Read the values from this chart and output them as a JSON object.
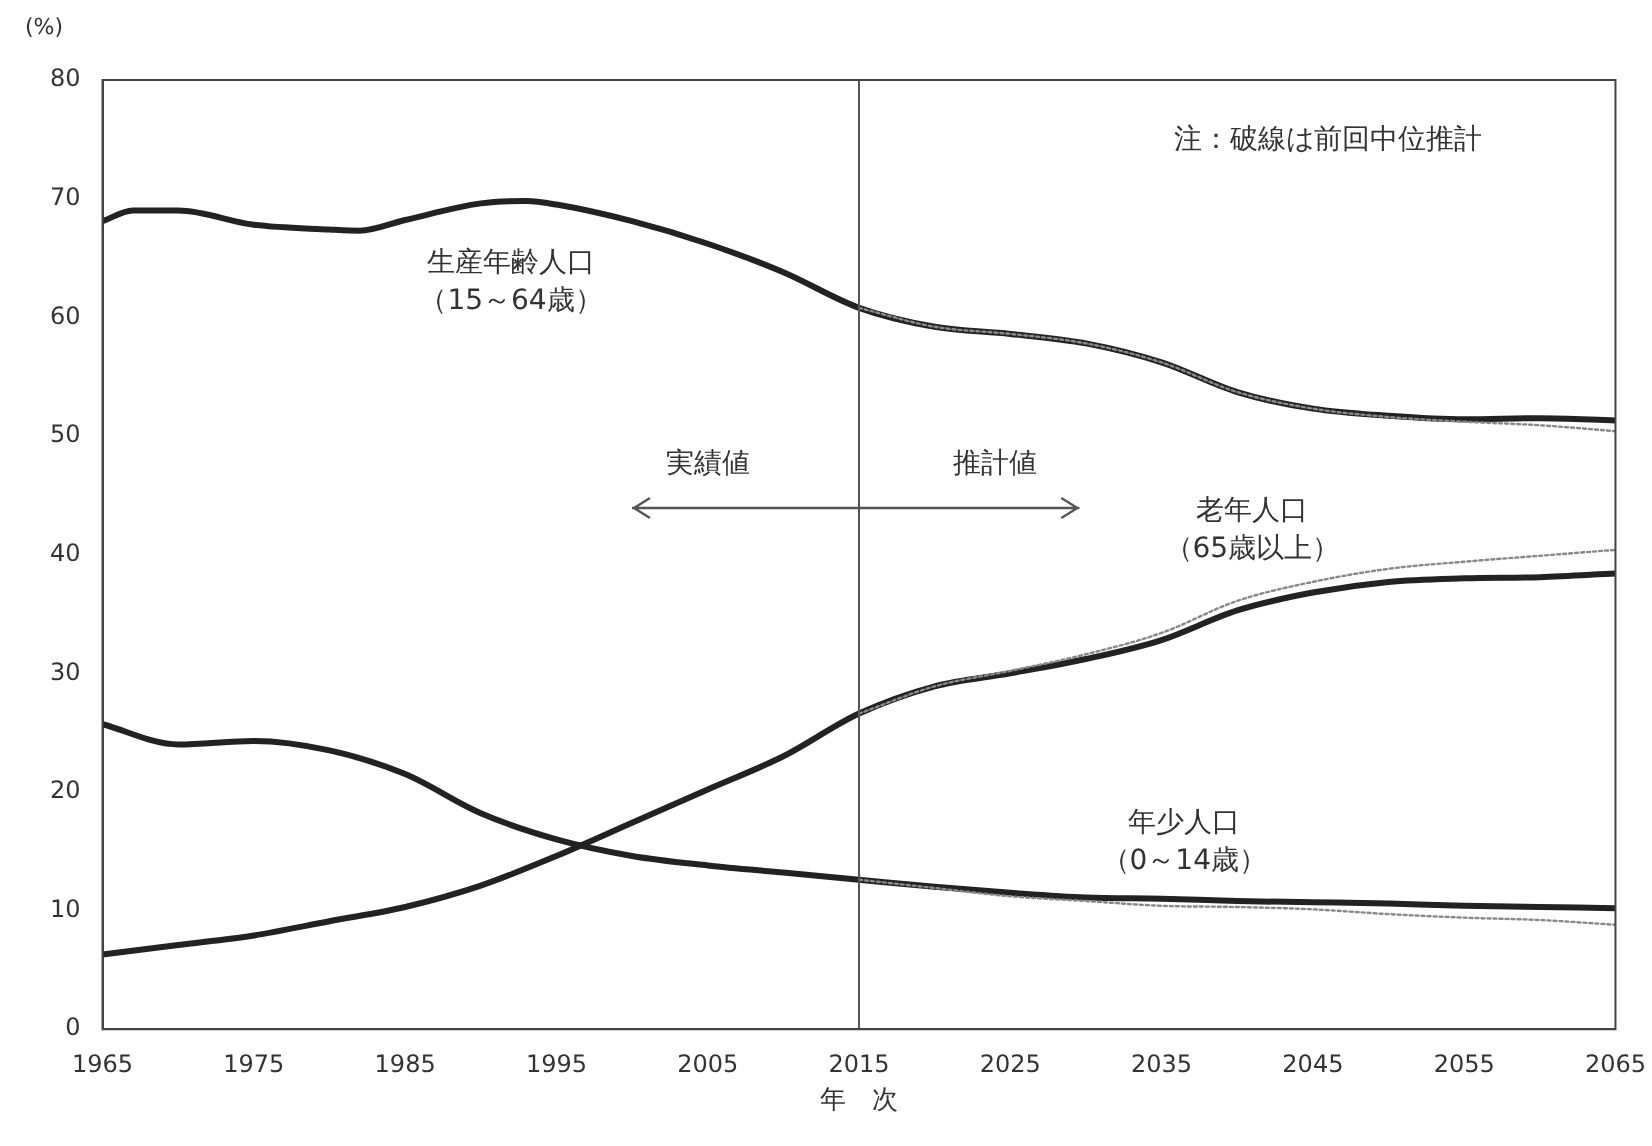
{
  "chart_data": {
    "type": "line",
    "ylabel": "(%)",
    "xlabel": "年　次",
    "xlim": [
      1965,
      2065
    ],
    "xticks": [
      1965,
      1975,
      1985,
      1995,
      2005,
      2015,
      2025,
      2035,
      2045,
      2055,
      2065
    ],
    "ylim": [
      0,
      80
    ],
    "yticks": [
      0,
      10,
      20,
      30,
      40,
      50,
      60,
      70,
      80
    ],
    "grid": false,
    "legend": false,
    "marker": "none",
    "ref_lines": [
      {
        "axis": "x",
        "value": 2015,
        "color": "#555555"
      }
    ],
    "annotations": [
      "注：破線は前回中位推計",
      "実績値",
      "推計値"
    ],
    "series": [
      {
        "name": "生産年齢人口（15～64歳）",
        "color": "#222222",
        "line_style": "solid",
        "x": [
          1965,
          1967,
          1970,
          1975,
          1980,
          1982,
          1985,
          1990,
          1993,
          1995,
          2000,
          2005,
          2010,
          2015,
          2020,
          2025,
          2030,
          2035,
          2040,
          2045,
          2050,
          2055,
          2060,
          2065
        ],
        "values": [
          68.1,
          69.0,
          69.0,
          67.8,
          67.4,
          67.3,
          68.2,
          69.6,
          69.8,
          69.5,
          68.1,
          66.2,
          63.8,
          60.8,
          59.2,
          58.6,
          57.8,
          56.2,
          53.7,
          52.3,
          51.7,
          51.4,
          51.5,
          51.3
        ]
      },
      {
        "name": "老年人口（65歳以上）",
        "color": "#222222",
        "line_style": "solid",
        "x": [
          1965,
          1970,
          1975,
          1980,
          1985,
          1990,
          1995,
          2000,
          2005,
          2010,
          2015,
          2020,
          2025,
          2030,
          2035,
          2040,
          2045,
          2050,
          2055,
          2060,
          2065
        ],
        "values": [
          6.3,
          7.1,
          7.9,
          9.1,
          10.3,
          12.1,
          14.6,
          17.4,
          20.2,
          23.0,
          26.6,
          28.9,
          30.0,
          31.2,
          32.8,
          35.3,
          36.8,
          37.7,
          38.0,
          38.1,
          38.4
        ]
      },
      {
        "name": "年少人口（0～14歳）",
        "color": "#222222",
        "line_style": "solid",
        "x": [
          1965,
          1970,
          1975,
          1980,
          1985,
          1990,
          1995,
          2000,
          2005,
          2010,
          2015,
          2020,
          2025,
          2030,
          2035,
          2040,
          2045,
          2050,
          2055,
          2060,
          2065
        ],
        "values": [
          25.7,
          24.0,
          24.3,
          23.5,
          21.5,
          18.2,
          16.0,
          14.6,
          13.8,
          13.2,
          12.6,
          12.0,
          11.5,
          11.1,
          11.0,
          10.8,
          10.7,
          10.6,
          10.4,
          10.3,
          10.2
        ]
      },
      {
        "color": "#888888",
        "line_style": "dotted",
        "x": [
          2015,
          2020,
          2025,
          2030,
          2035,
          2040,
          2045,
          2050,
          2055,
          2060,
          2065
        ],
        "values": [
          60.8,
          59.2,
          58.6,
          57.8,
          56.2,
          53.7,
          52.3,
          51.6,
          51.2,
          50.9,
          50.4
        ]
      },
      {
        "color": "#888888",
        "line_style": "dotted",
        "x": [
          2015,
          2020,
          2025,
          2030,
          2035,
          2040,
          2045,
          2050,
          2055,
          2060,
          2065
        ],
        "values": [
          26.6,
          28.9,
          30.2,
          31.6,
          33.4,
          36.1,
          37.7,
          38.8,
          39.4,
          39.9,
          40.4
        ]
      },
      {
        "color": "#888888",
        "line_style": "dotted",
        "x": [
          2015,
          2020,
          2025,
          2030,
          2035,
          2040,
          2045,
          2050,
          2055,
          2060,
          2065
        ],
        "values": [
          12.6,
          11.9,
          11.2,
          10.8,
          10.4,
          10.3,
          10.1,
          9.7,
          9.4,
          9.2,
          8.8
        ]
      }
    ]
  }
}
